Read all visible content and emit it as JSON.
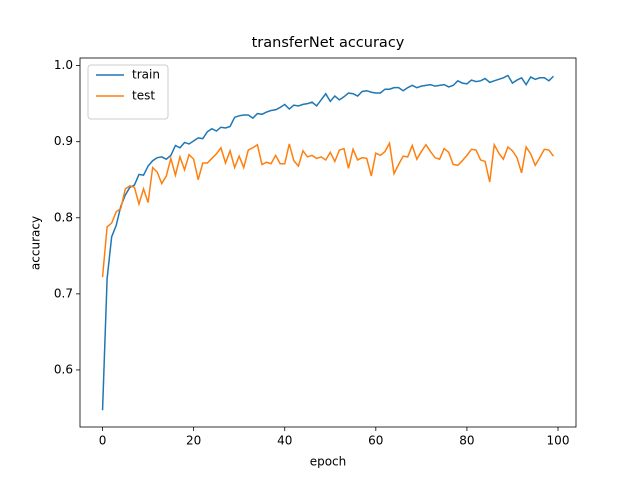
{
  "chart_data": {
    "type": "line",
    "title": "transferNet accuracy",
    "x_label": "epoch",
    "y_label": "accuracy",
    "x": [
      0,
      1,
      2,
      3,
      4,
      5,
      6,
      7,
      8,
      9,
      10,
      11,
      12,
      13,
      14,
      15,
      16,
      17,
      18,
      19,
      20,
      21,
      22,
      23,
      24,
      25,
      26,
      27,
      28,
      29,
      30,
      31,
      32,
      33,
      34,
      35,
      36,
      37,
      38,
      39,
      40,
      41,
      42,
      43,
      44,
      45,
      46,
      47,
      48,
      49,
      50,
      51,
      52,
      53,
      54,
      55,
      56,
      57,
      58,
      59,
      60,
      61,
      62,
      63,
      64,
      65,
      66,
      67,
      68,
      69,
      70,
      71,
      72,
      73,
      74,
      75,
      76,
      77,
      78,
      79,
      80,
      81,
      82,
      83,
      84,
      85,
      86,
      87,
      88,
      89,
      90,
      91,
      92,
      93,
      94,
      95,
      96,
      97,
      98,
      99
    ],
    "series": [
      {
        "name": "train",
        "color": "#1f77b4",
        "values": [
          0.547,
          0.72,
          0.775,
          0.79,
          0.815,
          0.83,
          0.84,
          0.843,
          0.857,
          0.856,
          0.868,
          0.875,
          0.879,
          0.88,
          0.877,
          0.882,
          0.895,
          0.892,
          0.899,
          0.897,
          0.901,
          0.905,
          0.904,
          0.913,
          0.917,
          0.914,
          0.919,
          0.918,
          0.92,
          0.932,
          0.934,
          0.935,
          0.935,
          0.931,
          0.937,
          0.936,
          0.939,
          0.941,
          0.942,
          0.945,
          0.949,
          0.943,
          0.948,
          0.947,
          0.949,
          0.95,
          0.952,
          0.947,
          0.955,
          0.963,
          0.953,
          0.96,
          0.955,
          0.959,
          0.964,
          0.963,
          0.96,
          0.966,
          0.967,
          0.965,
          0.964,
          0.964,
          0.969,
          0.969,
          0.971,
          0.971,
          0.967,
          0.971,
          0.974,
          0.971,
          0.973,
          0.974,
          0.975,
          0.973,
          0.974,
          0.975,
          0.972,
          0.974,
          0.98,
          0.977,
          0.976,
          0.981,
          0.979,
          0.98,
          0.983,
          0.978,
          0.98,
          0.982,
          0.984,
          0.987,
          0.977,
          0.981,
          0.984,
          0.975,
          0.985,
          0.982,
          0.984,
          0.984,
          0.98,
          0.986
        ]
      },
      {
        "name": "test",
        "color": "#ff7f0e",
        "values": [
          0.722,
          0.788,
          0.793,
          0.808,
          0.812,
          0.838,
          0.842,
          0.84,
          0.818,
          0.838,
          0.82,
          0.866,
          0.86,
          0.845,
          0.855,
          0.878,
          0.856,
          0.88,
          0.863,
          0.883,
          0.877,
          0.85,
          0.872,
          0.872,
          0.878,
          0.884,
          0.892,
          0.872,
          0.888,
          0.866,
          0.881,
          0.866,
          0.889,
          0.892,
          0.896,
          0.87,
          0.873,
          0.871,
          0.882,
          0.871,
          0.871,
          0.897,
          0.875,
          0.868,
          0.888,
          0.88,
          0.882,
          0.878,
          0.88,
          0.876,
          0.886,
          0.874,
          0.889,
          0.891,
          0.865,
          0.89,
          0.876,
          0.879,
          0.878,
          0.855,
          0.885,
          0.882,
          0.887,
          0.898,
          0.858,
          0.87,
          0.881,
          0.88,
          0.895,
          0.877,
          0.887,
          0.896,
          0.887,
          0.879,
          0.877,
          0.891,
          0.886,
          0.87,
          0.869,
          0.875,
          0.882,
          0.89,
          0.889,
          0.876,
          0.874,
          0.847,
          0.896,
          0.885,
          0.877,
          0.893,
          0.888,
          0.879,
          0.859,
          0.893,
          0.884,
          0.869,
          0.879,
          0.89,
          0.889,
          0.881
        ]
      }
    ],
    "xlim": [
      -4.95,
      103.95
    ],
    "xticks": [
      0,
      20,
      40,
      60,
      80,
      100
    ],
    "ylim": [
      0.525,
      1.01
    ],
    "yticks": [
      0.6,
      0.7,
      0.8,
      0.9,
      {
        "value": 1,
        "label": "1.0"
      }
    ],
    "grid": false,
    "legend": "upper left"
  }
}
